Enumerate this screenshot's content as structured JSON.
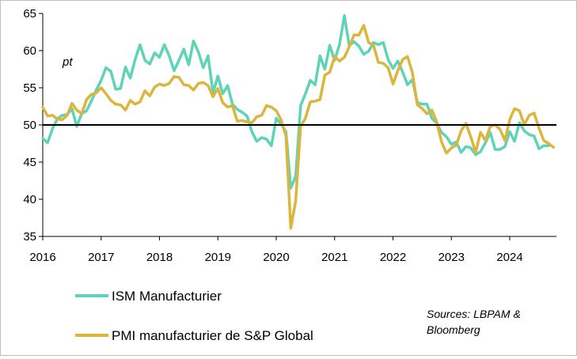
{
  "chart_data": {
    "type": "line",
    "title": "",
    "unit_label": "pt",
    "ylim": [
      35,
      65
    ],
    "y_ticks": [
      35,
      40,
      45,
      50,
      55,
      60,
      65
    ],
    "x_ticks": [
      "2016",
      "2017",
      "2018",
      "2019",
      "2020",
      "2021",
      "2022",
      "2023",
      "2024"
    ],
    "x_range": [
      2016.0,
      2024.8
    ],
    "reference_line": 50,
    "source": "Sources: LBPAM & Bloomberg",
    "series": [
      {
        "name": "ISM Manufacturier",
        "color": "#5fd3b8",
        "x": [
          2016.0,
          2016.083,
          2016.167,
          2016.25,
          2016.333,
          2016.417,
          2016.5,
          2016.583,
          2016.667,
          2016.75,
          2016.833,
          2016.917,
          2017.0,
          2017.083,
          2017.167,
          2017.25,
          2017.333,
          2017.417,
          2017.5,
          2017.583,
          2017.667,
          2017.75,
          2017.833,
          2017.917,
          2018.0,
          2018.083,
          2018.167,
          2018.25,
          2018.333,
          2018.417,
          2018.5,
          2018.583,
          2018.667,
          2018.75,
          2018.833,
          2018.917,
          2019.0,
          2019.083,
          2019.167,
          2019.25,
          2019.333,
          2019.417,
          2019.5,
          2019.583,
          2019.667,
          2019.75,
          2019.833,
          2019.917,
          2020.0,
          2020.083,
          2020.167,
          2020.25,
          2020.333,
          2020.417,
          2020.5,
          2020.583,
          2020.667,
          2020.75,
          2020.833,
          2020.917,
          2021.0,
          2021.083,
          2021.167,
          2021.25,
          2021.333,
          2021.417,
          2021.5,
          2021.583,
          2021.667,
          2021.75,
          2021.833,
          2021.917,
          2022.0,
          2022.083,
          2022.167,
          2022.25,
          2022.333,
          2022.417,
          2022.5,
          2022.583,
          2022.667,
          2022.75,
          2022.833,
          2022.917,
          2023.0,
          2023.083,
          2023.167,
          2023.25,
          2023.333,
          2023.417,
          2023.5,
          2023.583,
          2023.667,
          2023.75,
          2023.833,
          2023.917,
          2024.0,
          2024.083,
          2024.167,
          2024.25,
          2024.333,
          2024.417,
          2024.5,
          2024.583,
          2024.667
        ],
        "values": [
          48.2,
          47.6,
          49.5,
          50.8,
          51.3,
          51.4,
          52.2,
          49.8,
          51.5,
          51.9,
          53.2,
          54.7,
          56.0,
          57.7,
          57.2,
          54.8,
          54.9,
          57.8,
          56.3,
          58.8,
          60.8,
          58.7,
          58.2,
          59.7,
          59.1,
          60.8,
          59.3,
          57.3,
          58.7,
          60.2,
          58.1,
          61.3,
          59.8,
          57.7,
          59.3,
          54.3,
          56.6,
          54.2,
          55.3,
          52.8,
          52.1,
          51.7,
          51.2,
          49.1,
          47.8,
          48.3,
          48.1,
          47.2,
          50.9,
          50.1,
          49.1,
          41.5,
          43.1,
          52.6,
          54.2,
          56.0,
          55.4,
          59.3,
          57.5,
          60.7,
          58.7,
          60.8,
          64.7,
          60.7,
          61.2,
          60.6,
          59.5,
          59.9,
          61.1,
          60.8,
          61.1,
          58.8,
          57.6,
          58.6,
          57.1,
          55.4,
          56.1,
          53.0,
          52.8,
          52.8,
          50.9,
          50.2,
          49.0,
          48.4,
          47.4,
          47.7,
          46.3,
          47.1,
          46.9,
          46.0,
          46.4,
          47.6,
          49.0,
          46.7,
          46.7,
          47.1,
          49.1,
          47.8,
          50.3,
          49.2,
          48.7,
          48.5,
          46.8,
          47.2,
          47.2
        ]
      },
      {
        "name": "PMI manufacturier de S&P Global",
        "color": "#dcb53c",
        "x": [
          2016.0,
          2016.083,
          2016.167,
          2016.25,
          2016.333,
          2016.417,
          2016.5,
          2016.583,
          2016.667,
          2016.75,
          2016.833,
          2016.917,
          2017.0,
          2017.083,
          2017.167,
          2017.25,
          2017.333,
          2017.417,
          2017.5,
          2017.583,
          2017.667,
          2017.75,
          2017.833,
          2017.917,
          2018.0,
          2018.083,
          2018.167,
          2018.25,
          2018.333,
          2018.417,
          2018.5,
          2018.583,
          2018.667,
          2018.75,
          2018.833,
          2018.917,
          2019.0,
          2019.083,
          2019.167,
          2019.25,
          2019.333,
          2019.417,
          2019.5,
          2019.583,
          2019.667,
          2019.75,
          2019.833,
          2019.917,
          2020.0,
          2020.083,
          2020.167,
          2020.25,
          2020.333,
          2020.417,
          2020.5,
          2020.583,
          2020.667,
          2020.75,
          2020.833,
          2020.917,
          2021.0,
          2021.083,
          2021.167,
          2021.25,
          2021.333,
          2021.417,
          2021.5,
          2021.583,
          2021.667,
          2021.75,
          2021.833,
          2021.917,
          2022.0,
          2022.083,
          2022.167,
          2022.25,
          2022.333,
          2022.417,
          2022.5,
          2022.583,
          2022.667,
          2022.75,
          2022.833,
          2022.917,
          2023.0,
          2023.083,
          2023.167,
          2023.25,
          2023.333,
          2023.417,
          2023.5,
          2023.583,
          2023.667,
          2023.75,
          2023.833,
          2023.917,
          2024.0,
          2024.083,
          2024.167,
          2024.25,
          2024.333,
          2024.417,
          2024.5,
          2024.583,
          2024.667,
          2024.75
        ],
        "values": [
          52.4,
          51.2,
          51.3,
          50.8,
          50.7,
          51.3,
          52.9,
          52.0,
          51.5,
          53.4,
          54.1,
          54.3,
          55.0,
          54.2,
          53.3,
          52.8,
          52.7,
          52.0,
          53.3,
          52.8,
          53.1,
          54.6,
          53.9,
          55.1,
          55.5,
          55.3,
          55.6,
          56.5,
          56.4,
          55.4,
          55.3,
          54.7,
          55.6,
          55.7,
          55.3,
          53.8,
          54.9,
          53.0,
          52.4,
          52.6,
          50.5,
          50.6,
          50.4,
          50.3,
          51.1,
          51.3,
          52.6,
          52.4,
          51.9,
          50.7,
          48.5,
          36.1,
          39.8,
          49.8,
          50.9,
          53.1,
          53.2,
          53.4,
          56.7,
          57.1,
          59.2,
          58.6,
          59.1,
          60.5,
          62.1,
          62.1,
          63.4,
          61.1,
          60.7,
          58.4,
          58.3,
          57.7,
          55.5,
          57.3,
          58.8,
          59.2,
          57.0,
          52.7,
          52.2,
          51.5,
          52.0,
          50.4,
          47.7,
          46.2,
          46.9,
          47.3,
          49.2,
          50.2,
          48.4,
          46.3,
          49.0,
          47.9,
          49.8,
          50.0,
          49.4,
          47.9,
          50.7,
          52.2,
          51.9,
          50.0,
          51.3,
          51.6,
          49.6,
          47.9,
          47.5,
          47.0
        ]
      }
    ]
  },
  "legend": {
    "items": [
      {
        "label": "ISM Manufacturier"
      },
      {
        "label": "PMI manufacturier de S&P Global"
      }
    ]
  },
  "source_lines": [
    "Sources: LBPAM &",
    "Bloomberg"
  ]
}
